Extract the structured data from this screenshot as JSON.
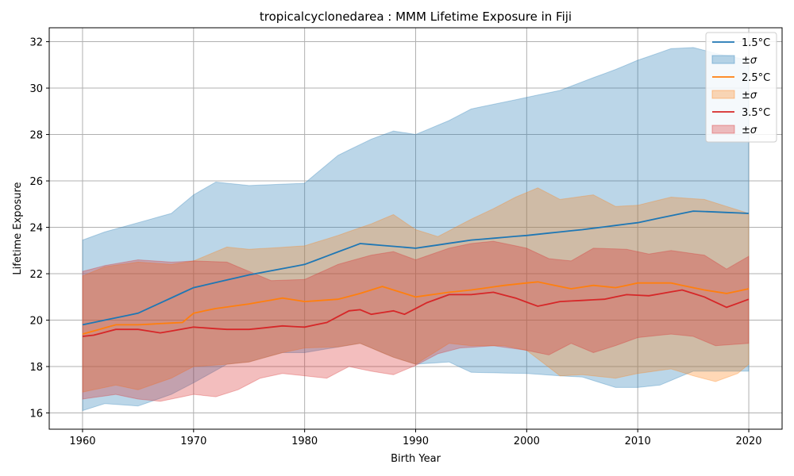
{
  "chart_data": {
    "type": "line",
    "title": "tropicalcyclonedarea : MMM Lifetime Exposure in Fiji",
    "xlabel": "Birth Year",
    "ylabel": "Lifetime Exposure",
    "xlim": [
      1957,
      2023
    ],
    "ylim": [
      15.3,
      32.6
    ],
    "xticks": [
      1960,
      1970,
      1980,
      1990,
      2000,
      2010,
      2020
    ],
    "yticks": [
      16,
      18,
      20,
      22,
      24,
      26,
      28,
      30,
      32
    ],
    "grid": true,
    "legend_position": "top-right",
    "years_start": 1960,
    "years_end": 2020,
    "series": [
      {
        "name": "1.5°C",
        "band_label": "±σ",
        "color": "#1f77b4",
        "keys": [
          [
            1960,
            19.8
          ],
          [
            1965,
            20.3
          ],
          [
            1970,
            21.4
          ],
          [
            1975,
            21.95
          ],
          [
            1980,
            22.4
          ],
          [
            1985,
            23.3
          ],
          [
            1990,
            23.1
          ],
          [
            1995,
            23.45
          ],
          [
            2000,
            23.65
          ],
          [
            2005,
            23.9
          ],
          [
            2010,
            24.2
          ],
          [
            2015,
            24.7
          ],
          [
            2020,
            24.6
          ]
        ],
        "upper_keys": [
          [
            1960,
            23.45
          ],
          [
            1962,
            23.8
          ],
          [
            1965,
            24.2
          ],
          [
            1968,
            24.6
          ],
          [
            1970,
            25.4
          ],
          [
            1972,
            25.95
          ],
          [
            1975,
            25.8
          ],
          [
            1980,
            25.9
          ],
          [
            1983,
            27.1
          ],
          [
            1986,
            27.8
          ],
          [
            1988,
            28.15
          ],
          [
            1990,
            28.0
          ],
          [
            1993,
            28.6
          ],
          [
            1995,
            29.1
          ],
          [
            2000,
            29.6
          ],
          [
            2003,
            29.9
          ],
          [
            2006,
            30.45
          ],
          [
            2008,
            30.8
          ],
          [
            2010,
            31.2
          ],
          [
            2013,
            31.7
          ],
          [
            2015,
            31.75
          ],
          [
            2017,
            31.5
          ],
          [
            2019,
            31.3
          ],
          [
            2020,
            31.2
          ]
        ],
        "lower_keys": [
          [
            1960,
            16.1
          ],
          [
            1962,
            16.4
          ],
          [
            1965,
            16.3
          ],
          [
            1968,
            16.8
          ],
          [
            1970,
            17.3
          ],
          [
            1973,
            18.1
          ],
          [
            1975,
            18.2
          ],
          [
            1978,
            18.6
          ],
          [
            1980,
            18.6
          ],
          [
            1985,
            19.0
          ],
          [
            1988,
            18.4
          ],
          [
            1990,
            18.1
          ],
          [
            1993,
            18.2
          ],
          [
            1995,
            17.75
          ],
          [
            2000,
            17.7
          ],
          [
            2003,
            17.6
          ],
          [
            2005,
            17.55
          ],
          [
            2008,
            17.1
          ],
          [
            2010,
            17.1
          ],
          [
            2012,
            17.2
          ],
          [
            2015,
            17.8
          ],
          [
            2020,
            17.8
          ]
        ]
      },
      {
        "name": "2.5°C",
        "band_label": "±σ",
        "color": "#ff7f0e",
        "keys": [
          [
            1960,
            19.4
          ],
          [
            1963,
            19.8
          ],
          [
            1965,
            19.8
          ],
          [
            1969,
            19.9
          ],
          [
            1970,
            20.3
          ],
          [
            1972,
            20.5
          ],
          [
            1975,
            20.7
          ],
          [
            1978,
            20.95
          ],
          [
            1980,
            20.8
          ],
          [
            1983,
            20.9
          ],
          [
            1985,
            21.15
          ],
          [
            1987,
            21.45
          ],
          [
            1990,
            21.0
          ],
          [
            1993,
            21.2
          ],
          [
            1995,
            21.3
          ],
          [
            1998,
            21.5
          ],
          [
            2001,
            21.65
          ],
          [
            2004,
            21.35
          ],
          [
            2006,
            21.5
          ],
          [
            2008,
            21.4
          ],
          [
            2010,
            21.6
          ],
          [
            2013,
            21.6
          ],
          [
            2016,
            21.3
          ],
          [
            2018,
            21.15
          ],
          [
            2020,
            21.35
          ]
        ],
        "upper_keys": [
          [
            1960,
            21.9
          ],
          [
            1962,
            22.3
          ],
          [
            1965,
            22.5
          ],
          [
            1968,
            22.4
          ],
          [
            1970,
            22.55
          ],
          [
            1973,
            23.15
          ],
          [
            1975,
            23.05
          ],
          [
            1980,
            23.2
          ],
          [
            1983,
            23.65
          ],
          [
            1986,
            24.15
          ],
          [
            1988,
            24.55
          ],
          [
            1990,
            23.9
          ],
          [
            1992,
            23.6
          ],
          [
            1995,
            24.35
          ],
          [
            1997,
            24.8
          ],
          [
            1999,
            25.3
          ],
          [
            2001,
            25.7
          ],
          [
            2003,
            25.2
          ],
          [
            2006,
            25.4
          ],
          [
            2008,
            24.9
          ],
          [
            2010,
            24.95
          ],
          [
            2013,
            25.3
          ],
          [
            2016,
            25.2
          ],
          [
            2020,
            24.6
          ]
        ],
        "lower_keys": [
          [
            1960,
            16.9
          ],
          [
            1963,
            17.2
          ],
          [
            1965,
            17.0
          ],
          [
            1968,
            17.5
          ],
          [
            1970,
            18.0
          ],
          [
            1973,
            18.1
          ],
          [
            1975,
            18.2
          ],
          [
            1978,
            18.6
          ],
          [
            1980,
            18.8
          ],
          [
            1983,
            18.85
          ],
          [
            1985,
            19.0
          ],
          [
            1988,
            18.4
          ],
          [
            1990,
            18.1
          ],
          [
            1993,
            19.0
          ],
          [
            1995,
            18.9
          ],
          [
            1998,
            18.9
          ],
          [
            2000,
            18.7
          ],
          [
            2003,
            17.6
          ],
          [
            2005,
            17.65
          ],
          [
            2008,
            17.5
          ],
          [
            2010,
            17.7
          ],
          [
            2013,
            17.9
          ],
          [
            2015,
            17.6
          ],
          [
            2017,
            17.35
          ],
          [
            2019,
            17.7
          ],
          [
            2020,
            18.1
          ]
        ]
      },
      {
        "name": "3.5°C",
        "band_label": "±σ",
        "color": "#d62728",
        "keys": [
          [
            1960,
            19.3
          ],
          [
            1961,
            19.35
          ],
          [
            1963,
            19.6
          ],
          [
            1965,
            19.6
          ],
          [
            1967,
            19.45
          ],
          [
            1970,
            19.7
          ],
          [
            1973,
            19.6
          ],
          [
            1975,
            19.6
          ],
          [
            1978,
            19.75
          ],
          [
            1980,
            19.7
          ],
          [
            1982,
            19.9
          ],
          [
            1984,
            20.4
          ],
          [
            1985,
            20.45
          ],
          [
            1986,
            20.25
          ],
          [
            1988,
            20.4
          ],
          [
            1989,
            20.25
          ],
          [
            1991,
            20.75
          ],
          [
            1993,
            21.1
          ],
          [
            1995,
            21.1
          ],
          [
            1997,
            21.2
          ],
          [
            1999,
            20.95
          ],
          [
            2001,
            20.6
          ],
          [
            2003,
            20.8
          ],
          [
            2005,
            20.85
          ],
          [
            2007,
            20.9
          ],
          [
            2009,
            21.1
          ],
          [
            2011,
            21.05
          ],
          [
            2014,
            21.3
          ],
          [
            2016,
            21.0
          ],
          [
            2018,
            20.55
          ],
          [
            2020,
            20.9
          ]
        ],
        "upper_keys": [
          [
            1960,
            22.1
          ],
          [
            1962,
            22.35
          ],
          [
            1965,
            22.6
          ],
          [
            1968,
            22.5
          ],
          [
            1970,
            22.55
          ],
          [
            1973,
            22.5
          ],
          [
            1975,
            22.1
          ],
          [
            1977,
            21.7
          ],
          [
            1980,
            21.75
          ],
          [
            1983,
            22.4
          ],
          [
            1986,
            22.8
          ],
          [
            1988,
            22.95
          ],
          [
            1990,
            22.6
          ],
          [
            1993,
            23.1
          ],
          [
            1995,
            23.3
          ],
          [
            1997,
            23.4
          ],
          [
            2000,
            23.1
          ],
          [
            2002,
            22.65
          ],
          [
            2004,
            22.55
          ],
          [
            2006,
            23.1
          ],
          [
            2009,
            23.05
          ],
          [
            2011,
            22.85
          ],
          [
            2013,
            23.0
          ],
          [
            2016,
            22.8
          ],
          [
            2018,
            22.2
          ],
          [
            2020,
            22.75
          ]
        ],
        "lower_keys": [
          [
            1960,
            16.6
          ],
          [
            1963,
            16.8
          ],
          [
            1965,
            16.6
          ],
          [
            1967,
            16.5
          ],
          [
            1970,
            16.8
          ],
          [
            1972,
            16.7
          ],
          [
            1974,
            17.0
          ],
          [
            1976,
            17.5
          ],
          [
            1978,
            17.7
          ],
          [
            1980,
            17.6
          ],
          [
            1982,
            17.5
          ],
          [
            1984,
            18.0
          ],
          [
            1986,
            17.8
          ],
          [
            1988,
            17.65
          ],
          [
            1990,
            18.05
          ],
          [
            1992,
            18.55
          ],
          [
            1994,
            18.8
          ],
          [
            1997,
            18.9
          ],
          [
            2000,
            18.7
          ],
          [
            2002,
            18.5
          ],
          [
            2004,
            19.0
          ],
          [
            2006,
            18.6
          ],
          [
            2008,
            18.9
          ],
          [
            2010,
            19.25
          ],
          [
            2013,
            19.4
          ],
          [
            2015,
            19.3
          ],
          [
            2017,
            18.9
          ],
          [
            2020,
            19.0
          ]
        ]
      }
    ]
  }
}
